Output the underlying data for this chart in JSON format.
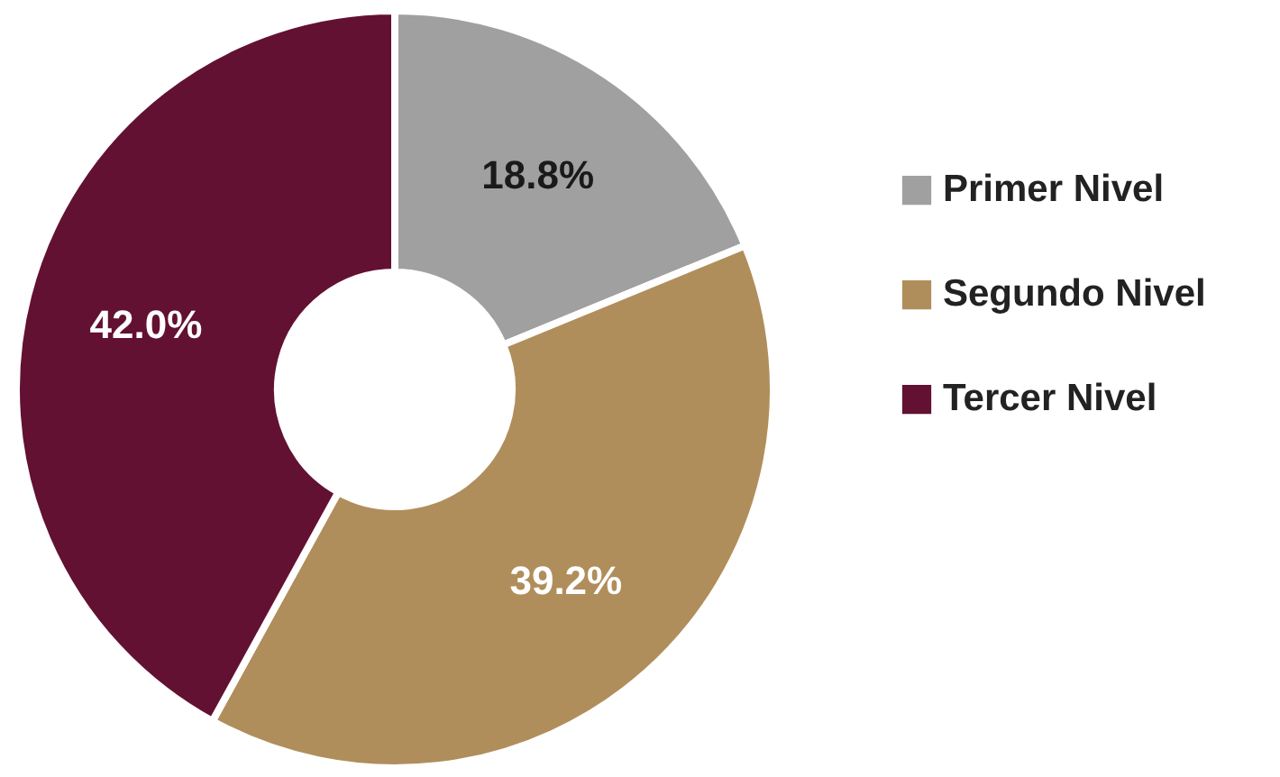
{
  "chart_data": {
    "type": "donut",
    "categories": [
      "Primer Nivel",
      "Segundo Nivel",
      "Tercer Nivel"
    ],
    "values": [
      18.8,
      39.2,
      42.0
    ],
    "colors": [
      "#a0a0a0",
      "#b08e5b",
      "#621132"
    ],
    "value_labels": [
      "18.8%",
      "39.2%",
      "42.0%"
    ],
    "legend": "right"
  }
}
